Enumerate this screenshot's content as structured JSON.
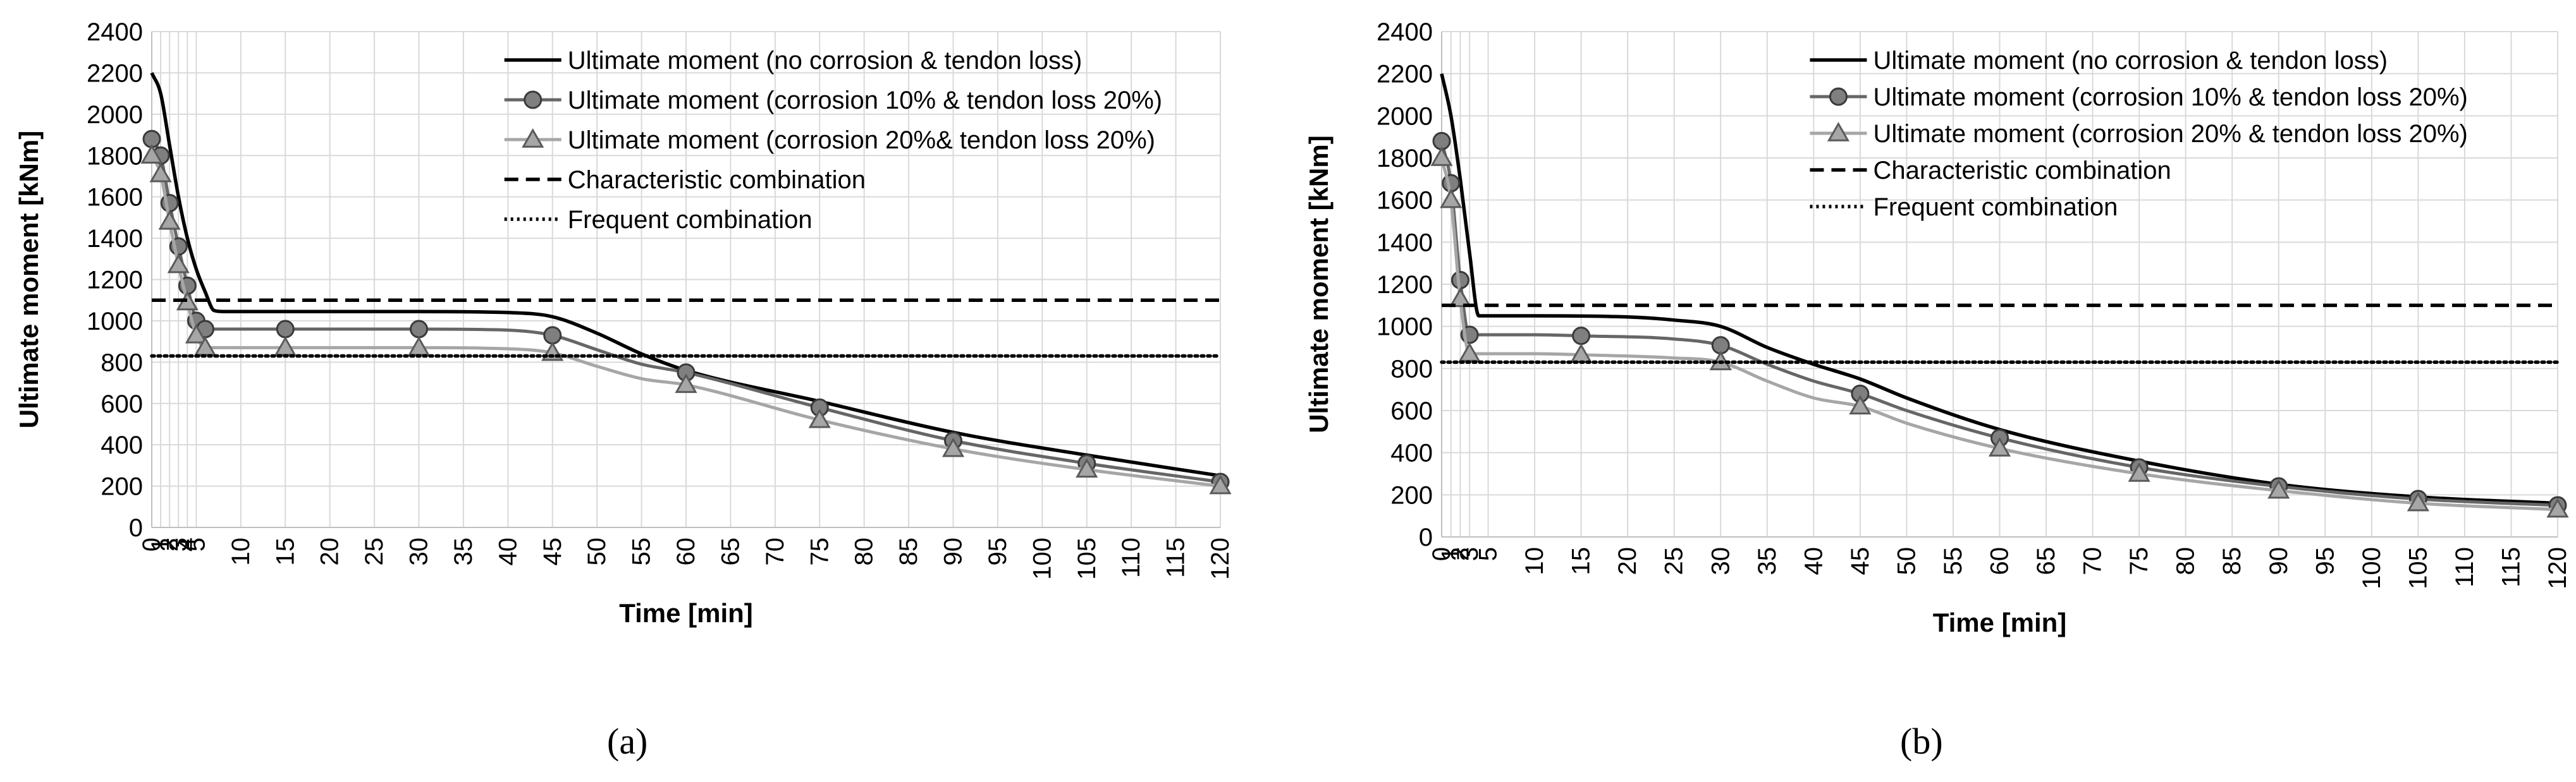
{
  "captions": {
    "a": "(a)",
    "b": "(b)"
  },
  "colors": {
    "black": "#000000",
    "gray": "#666666",
    "lightgray": "#a6a6a6",
    "grid": "#d9d9d9"
  },
  "chart_data": [
    {
      "type": "line",
      "panel": "a",
      "xlabel": "Time [min]",
      "ylabel": "Ultimate moment [kNm]",
      "xlim": [
        0,
        120
      ],
      "ylim": [
        0,
        2400
      ],
      "xticks": [
        0,
        1,
        2,
        3,
        4,
        5,
        10,
        15,
        20,
        25,
        30,
        35,
        40,
        45,
        50,
        55,
        60,
        65,
        70,
        75,
        80,
        85,
        90,
        95,
        100,
        105,
        110,
        115,
        120
      ],
      "yticks": [
        0,
        200,
        400,
        600,
        800,
        1000,
        1200,
        1400,
        1600,
        1800,
        2000,
        2200,
        2400
      ],
      "grid": true,
      "legend_position": "top-right",
      "series": [
        {
          "name": "Ultimate moment (no corrosion & tendon loss)",
          "color": "#000000",
          "style": "solid",
          "marker": "none",
          "x": [
            0,
            1,
            2,
            3,
            4,
            5,
            6,
            7,
            8,
            15,
            30,
            40,
            45,
            50,
            55,
            60,
            75,
            90,
            105,
            120
          ],
          "y": [
            2200,
            2100,
            1850,
            1600,
            1400,
            1250,
            1140,
            1050,
            1045,
            1045,
            1045,
            1040,
            1020,
            940,
            840,
            760,
            610,
            460,
            350,
            250
          ]
        },
        {
          "name": "Ultimate moment (corrosion 10% & tendon loss 20%)",
          "color": "#666666",
          "style": "solid",
          "marker": "circle",
          "x": [
            0,
            1,
            2,
            3,
            4,
            5,
            6,
            15,
            30,
            40,
            45,
            50,
            55,
            60,
            75,
            90,
            105,
            120
          ],
          "y": [
            1880,
            1800,
            1570,
            1360,
            1170,
            1000,
            960,
            960,
            960,
            955,
            930,
            860,
            790,
            750,
            580,
            420,
            310,
            220
          ],
          "marker_x": [
            0,
            1,
            2,
            3,
            4,
            5,
            6,
            15,
            30,
            45,
            60,
            75,
            90,
            105,
            120
          ]
        },
        {
          "name": "Ultimate moment (corrosion 20%& tendon loss 20%)",
          "color": "#a6a6a6",
          "style": "solid",
          "marker": "triangle",
          "x": [
            0,
            1,
            2,
            3,
            4,
            5,
            6,
            15,
            30,
            40,
            45,
            50,
            55,
            60,
            75,
            90,
            105,
            120
          ],
          "y": [
            1800,
            1710,
            1480,
            1270,
            1090,
            930,
            870,
            870,
            870,
            865,
            845,
            780,
            720,
            690,
            520,
            380,
            280,
            200
          ],
          "marker_x": [
            0,
            1,
            2,
            3,
            4,
            5,
            6,
            15,
            30,
            45,
            60,
            75,
            90,
            105,
            120
          ]
        },
        {
          "name": "Characteristic combination",
          "color": "#000000",
          "style": "dashed",
          "marker": "none",
          "x": [
            0,
            120
          ],
          "y": [
            1100,
            1100
          ]
        },
        {
          "name": "Frequent combination",
          "color": "#000000",
          "style": "dotted",
          "marker": "none",
          "x": [
            0,
            120
          ],
          "y": [
            830,
            830
          ]
        }
      ]
    },
    {
      "type": "line",
      "panel": "b",
      "xlabel": "Time [min]",
      "ylabel": "Ultimate moment [kNm]",
      "xlim": [
        0,
        120
      ],
      "ylim": [
        0,
        2400
      ],
      "xticks": [
        0,
        1,
        2,
        3,
        5,
        10,
        15,
        20,
        25,
        30,
        35,
        40,
        45,
        50,
        55,
        60,
        65,
        70,
        75,
        80,
        85,
        90,
        95,
        100,
        105,
        110,
        115,
        120
      ],
      "yticks": [
        0,
        200,
        400,
        600,
        800,
        1000,
        1200,
        1400,
        1600,
        1800,
        2000,
        2200,
        2400
      ],
      "grid": true,
      "legend_position": "top-right",
      "series": [
        {
          "name": "Ultimate moment (no corrosion & tendon loss)",
          "color": "#000000",
          "style": "solid",
          "marker": "none",
          "x": [
            0,
            1,
            2,
            3,
            4,
            10,
            20,
            25,
            30,
            35,
            40,
            45,
            50,
            60,
            75,
            90,
            105,
            120
          ],
          "y": [
            2200,
            2000,
            1700,
            1350,
            1050,
            1050,
            1045,
            1030,
            1000,
            900,
            820,
            750,
            660,
            510,
            360,
            250,
            190,
            160
          ],
          "marker_x": []
        },
        {
          "name": "Ultimate moment (corrosion 10% & tendon loss 20%)",
          "color": "#666666",
          "style": "solid",
          "marker": "circle",
          "x": [
            0,
            1,
            2,
            3,
            10,
            15,
            25,
            30,
            35,
            40,
            45,
            50,
            60,
            75,
            90,
            105,
            120
          ],
          "y": [
            1880,
            1680,
            1220,
            960,
            960,
            955,
            940,
            910,
            820,
            740,
            680,
            600,
            470,
            330,
            240,
            180,
            150
          ],
          "marker_x": [
            0,
            1,
            2,
            3,
            15,
            30,
            45,
            60,
            75,
            90,
            105,
            120
          ]
        },
        {
          "name": "Ultimate moment (corrosion 20% & tendon loss 20%)",
          "color": "#a6a6a6",
          "style": "solid",
          "marker": "triangle",
          "x": [
            0,
            1,
            2,
            3,
            10,
            15,
            25,
            30,
            35,
            40,
            45,
            50,
            60,
            75,
            90,
            105,
            120
          ],
          "y": [
            1800,
            1600,
            1130,
            870,
            870,
            865,
            850,
            830,
            740,
            660,
            620,
            540,
            420,
            300,
            220,
            160,
            130
          ],
          "marker_x": [
            0,
            1,
            2,
            3,
            15,
            30,
            45,
            60,
            75,
            90,
            105,
            120
          ]
        },
        {
          "name": "Characteristic combination",
          "color": "#000000",
          "style": "dashed",
          "marker": "none",
          "x": [
            0,
            120
          ],
          "y": [
            1100,
            1100
          ]
        },
        {
          "name": "Frequent combination",
          "color": "#000000",
          "style": "dotted",
          "marker": "none",
          "x": [
            0,
            120
          ],
          "y": [
            830,
            830
          ]
        }
      ]
    }
  ]
}
